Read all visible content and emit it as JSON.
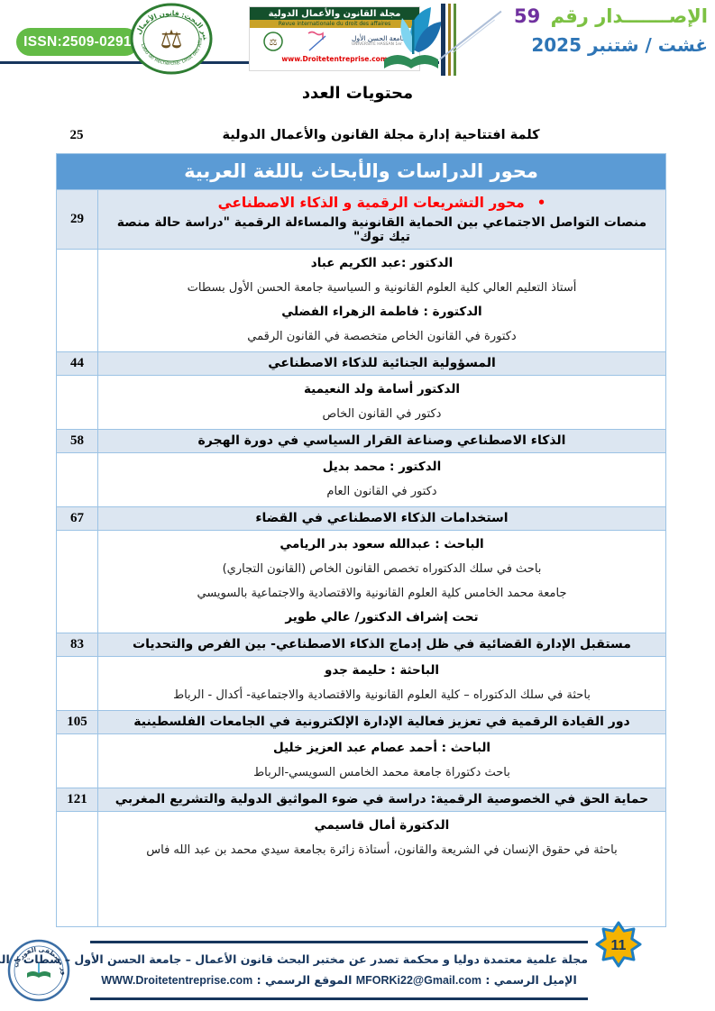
{
  "header": {
    "issn": "ISSN:2509-0291",
    "journal_banner_title": "مجلة القانون والأعمال الدولية",
    "journal_banner_subtitle": "Revue internationale du droit des affaires",
    "lab_seal_text": "مختبر البحث: قانون الأعمال",
    "lab_seal_subtext": "Labo de Recherche: Droit des Affaires",
    "university_name": "جامعة الحسن الأول",
    "university_name_fr": "UNIVERSITÉ HASSAN 1er",
    "website_small": "www.Droitetentreprise.com",
    "issue_label": "الإصـــــــدار رقم",
    "issue_number": "59",
    "issue_date": "غشت / شتنبر 2025"
  },
  "contents_title": "محتويات العدد",
  "intro": {
    "page": "25",
    "title": "كلمة افتتاحية إدارة مجلة القانون والأعمال الدولية"
  },
  "section_banner": "محور الدراسات والأبحاث باللغة العربية",
  "toc": [
    {
      "page": "29",
      "section": "محور التشريعات الرقمية و الذكاء الاصطناعي",
      "title": "منصات التواصل الاجتماعي بين الحماية القانونية والمساءلة الرقمية  \"دراسة حالة منصة تيك توك\"",
      "authors": [
        {
          "text": "الدكتور :عبد الكريم عباد",
          "bold": true
        },
        {
          "text": "أستاذ التعليم العالي كلية العلوم القانونية و السياسية جامعة الحسن الأول بسطات",
          "bold": false
        },
        {
          "text": "الدكتورة :  فاطمة الزهراء الفضلي",
          "bold": true
        },
        {
          "text": "دكتورة في القانون الخاص  متخصصة في القانون الرقمي",
          "bold": false
        }
      ]
    },
    {
      "page": "44",
      "title": "المسؤولية الجنائية للذكاء الاصطناعي",
      "authors": [
        {
          "text": "الدكتور أسامة ولد النعيمية",
          "bold": true
        },
        {
          "text": "دكتور في القانون الخاص",
          "bold": false
        }
      ]
    },
    {
      "page": "58",
      "title": "الذكاء الاصطناعي وصناعة القرار السياسي في دورة الهجرة",
      "authors": [
        {
          "text": "الدكتور : محمد بديل",
          "bold": true
        },
        {
          "text": "دكتور في القانون العام",
          "bold": false
        }
      ]
    },
    {
      "page": "67",
      "title": "استخدامات الذكاء الاصطناعي في القضاء",
      "authors": [
        {
          "text": "الباحث : عبدالله سعود بدر الريامي",
          "bold": true
        },
        {
          "text": "باحث في سلك الدكتوراه تخصص القانون الخاص (القانون التجاري)",
          "bold": false
        },
        {
          "text": "جامعة محمد الخامس كلية العلوم القانونية والاقتصادية والاجتماعية بالسويسي",
          "bold": false
        },
        {
          "text": "تحت إشراف الدكتور/ عالي طوير",
          "bold": true
        }
      ]
    },
    {
      "page": "83",
      "title": "مستقبل الإدارة القضائية في ظل إدماج الذكاء الاصطناعي- بين الفرص والتحديات",
      "authors": [
        {
          "text": "الباحثة : حليمة جدو",
          "bold": true
        },
        {
          "text": "باحثة في سلك الدكتوراه –  كلية العلوم القانونية والاقتصادية والاجتماعية- أكدال - الرباط",
          "bold": false
        }
      ]
    },
    {
      "page": "105",
      "title": "دور القيادة الرقمية في تعزيز فعالية الإدارة الإلكترونية في الجامعات الفلسطينية",
      "authors": [
        {
          "text": "الباحث : أحمد عصام عبد العزيز خليل",
          "bold": true
        },
        {
          "text": "باحث دكتوراة جامعة محمد الخامس السويسي-الرباط",
          "bold": false
        }
      ]
    },
    {
      "page": "121",
      "title": "حماية الحق في الخصوصية الرقمية: دراسة في ضوء المواثيق الدولية والتشريع المغربي",
      "authors": [
        {
          "text": "الدكتورة أمال قاسيمي",
          "bold": true
        },
        {
          "text": "باحثة في حقوق الإنسان في الشريعة والقانون، أستاذة زائرة بجامعة سيدي محمد بن عبد الله فاس",
          "bold": false
        }
      ]
    }
  ],
  "footer": {
    "stamp_text": "الدكتور مصطفى الفوركي",
    "line1": "مجلة علمية معتمدة  دوليا و محكمة تصدر عن مختبر البحث قانون الأعمال – جامعة الحسن الأول – سطات – المغرب",
    "email_label": "الإميل الرسمي :",
    "email": "MFORKi22@Gmail.com",
    "site_label": "الموقع الرسمي :",
    "site": "WWW.Droitetentreprise.com",
    "page_number": "11"
  },
  "colors": {
    "banner_blue": "#5b9bd5",
    "row_light_blue": "#dce6f1",
    "table_border": "#9cc3e5",
    "section_red": "#ff0000",
    "issn_green": "#63bb46",
    "issue_label_green": "#7cc143",
    "issue_number_purple": "#7030a0",
    "issue_date_blue": "#2e75b6",
    "footer_navy": "#17365d",
    "badge_gold": "#f5b301",
    "badge_border_blue": "#1f7ec2"
  }
}
